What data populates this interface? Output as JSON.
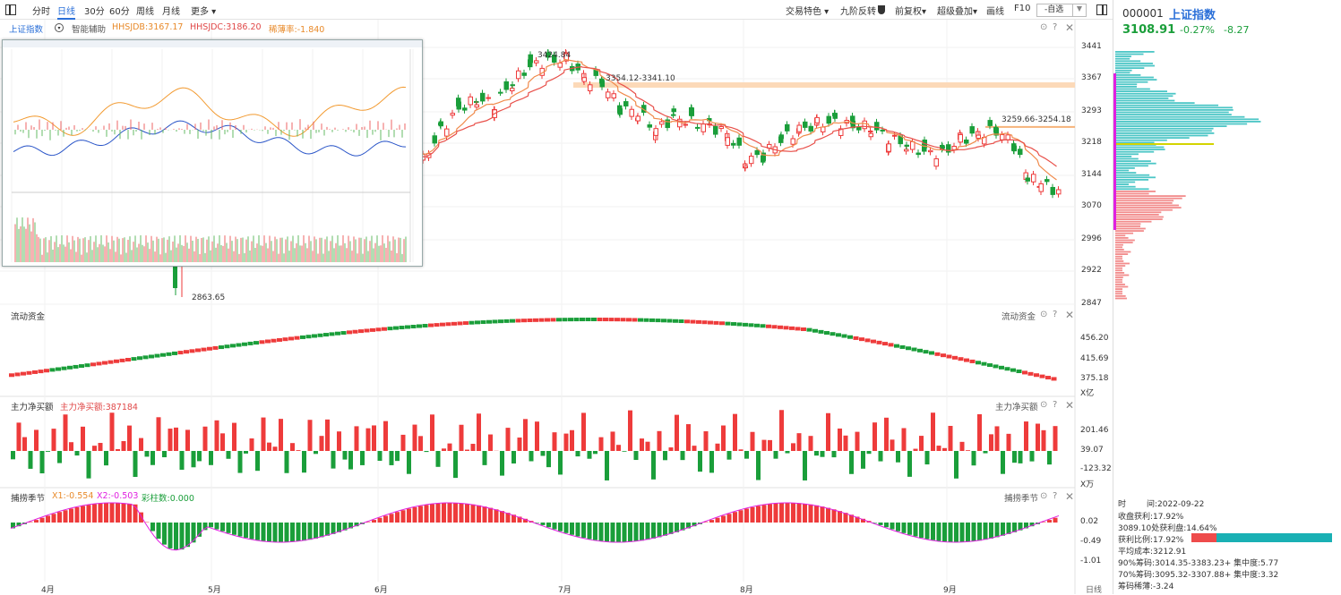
{
  "toolbar": {
    "tabs": [
      "分时",
      "日线",
      "30分",
      "60分",
      "周线",
      "月线",
      "更多 ▾"
    ],
    "active": 1,
    "right": [
      "交易特色 ▾",
      "九阶反转",
      "前复权▾",
      "超级叠加▾",
      "画线",
      "F10"
    ],
    "select": "-自选"
  },
  "indicator_bar": {
    "name": "上证指数",
    "smart": "智能辅助",
    "hhsjdb": "HHSJDB:3167.17",
    "hhsjdc": "HHSJDC:3186.20",
    "tick": "稀薄率:-1.840"
  },
  "price_axis": [
    "3441",
    "3367",
    "3293",
    "3218",
    "3144",
    "3070",
    "2996",
    "2922",
    "2847"
  ],
  "annotations": {
    "high": "3424.84",
    "band1": "3354.12-3341.10",
    "band2": "3259.66-3254.18",
    "low": "2863.65"
  },
  "panels": {
    "liquidity": {
      "title": "流动资金",
      "right_label": "流动资金",
      "axis": [
        "456.20",
        "415.69",
        "375.18"
      ],
      "unit": "X亿"
    },
    "net_buy": {
      "title": "主力净买额",
      "value": "主力净买额:387184",
      "right_label": "主力净买额",
      "axis": [
        "201.46",
        "39.07",
        "-123.32"
      ],
      "unit": "X万"
    },
    "season": {
      "title": "捕捞季节",
      "x1": "X1:-0.554",
      "x2": "X2:-0.503",
      "bar": "彩柱数:0.000",
      "right_label": "捕捞季节",
      "axis": [
        "0.02",
        "-0.49",
        "-1.01"
      ]
    }
  },
  "months": [
    "4月",
    "5月",
    "6月",
    "7月",
    "8月",
    "9月"
  ],
  "period_label": "日线",
  "right_panel": {
    "code": "000001",
    "name": "上证指数",
    "price": "3108.91",
    "pct": "-0.27%",
    "chg": "-8.27",
    "time_label": "时",
    "date": "间:2022-09-22",
    "lines": [
      "收盘获利:17.92%",
      "3089.10处获利盘:14.64%",
      "获利比例:17.92%",
      "平均成本:3212.91",
      "90%筹码:3014.35-3383.23+ 集中度:5.77",
      "70%筹码:3095.32-3307.88+ 集中度:3.32",
      "筹码稀薄:-3.24"
    ]
  },
  "colors": {
    "up": "#ee3b3b",
    "down": "#1a9e3a",
    "ma1": "#f08a4b",
    "ma2": "#e8504a",
    "cyan": "#4cc6c6",
    "pink": "#f28c8c",
    "magenta": "#e020e0",
    "accent": "#2a6fd8"
  }
}
